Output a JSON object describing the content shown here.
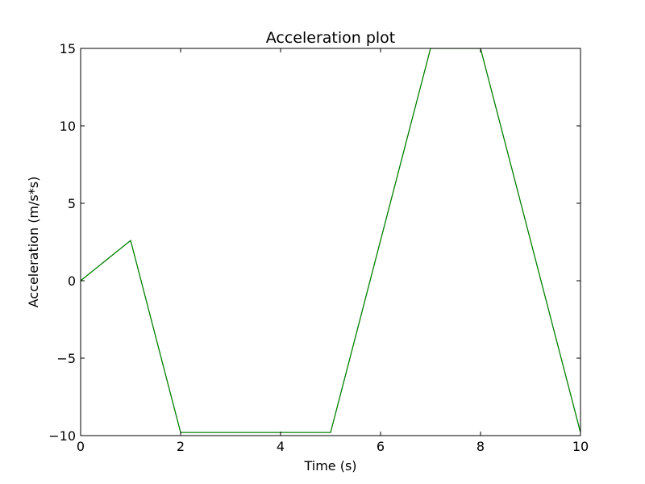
{
  "chart_data": {
    "type": "line",
    "title": "Acceleration plot",
    "xlabel": "Time (s)",
    "ylabel": "Acceleration (m/s*s)",
    "xlim": [
      0,
      10
    ],
    "ylim": [
      -10,
      15
    ],
    "xticks": [
      0,
      2,
      4,
      6,
      8,
      10
    ],
    "yticks": [
      -10,
      -5,
      0,
      5,
      10,
      15
    ],
    "xtick_labels": [
      "0",
      "2",
      "4",
      "6",
      "8",
      "10"
    ],
    "ytick_labels": [
      "−10",
      "−5",
      "0",
      "5",
      "10",
      "15"
    ],
    "grid": false,
    "series": [
      {
        "color": "#008000",
        "x": [
          0,
          1,
          2,
          3,
          4,
          5,
          7,
          8,
          10
        ],
        "y": [
          0,
          2.6,
          -9.8,
          -9.8,
          -9.8,
          -9.8,
          15,
          15,
          -9.8
        ]
      }
    ]
  }
}
